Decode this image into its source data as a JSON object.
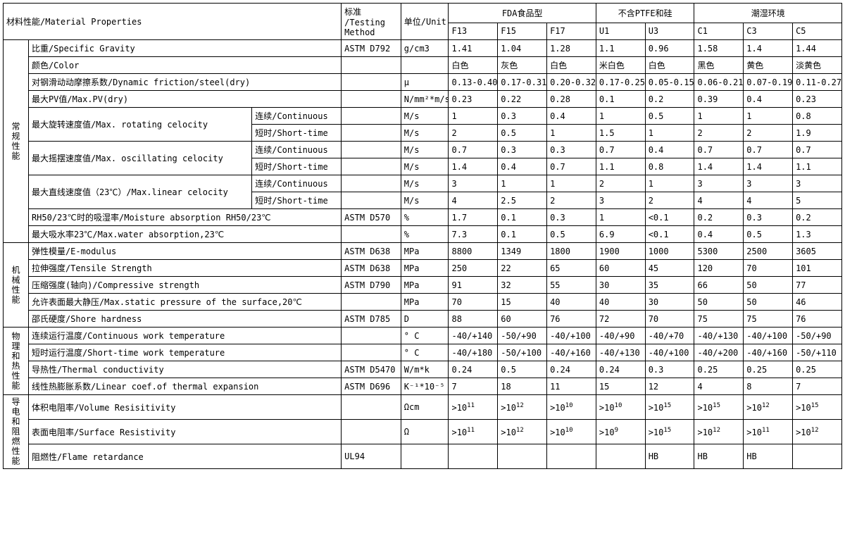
{
  "header": {
    "material_properties": "材料性能/Material Properties",
    "testing_method": "标准\n/Testing\nMethod",
    "unit": "单位/Unit",
    "groups": [
      {
        "label": "FDA食品型",
        "cols": [
          "F13",
          "F15",
          "F17"
        ]
      },
      {
        "label": "不含PTFE和硅",
        "cols": [
          "U1",
          "U3"
        ]
      },
      {
        "label": "潮湿环境",
        "cols": [
          "C1",
          "C3",
          "C5"
        ]
      }
    ]
  },
  "categories": [
    {
      "id": "general",
      "label": "常规性能"
    },
    {
      "id": "mech",
      "label": "机械性能"
    },
    {
      "id": "thermal",
      "label": "物理和热性能"
    },
    {
      "id": "elec",
      "label": "导电和阻燃性能"
    }
  ],
  "row_labels": {
    "continuous": "连续/Continuous",
    "short_time": "短时/Short-time"
  },
  "properties": {
    "spec_gravity": "比重/Specific Gravity",
    "color": "颜色/Color",
    "friction": "对钢滑动动摩擦系数/Dynamic friction/steel(dry)",
    "max_pv": "最大PV值/Max.PV(dry)",
    "rot_vel": "最大旋转速度值/Max. rotating celocity",
    "osc_vel": "最大摇摆速度值/Max. oscillating celocity",
    "lin_vel": "最大直线速度值（23℃）/Max.linear celocity",
    "moist_rh50": "RH50/23℃时的吸湿率/Moisture absorption RH50/23℃",
    "max_water": "最大吸水率23℃/Max.water absorption,23℃",
    "e_modulus": "弹性模量/E-modulus",
    "tensile": "拉伸强度/Tensile Strength",
    "compressive": "压缩强度(轴向)/Compressive strength",
    "static_pressure": "允许表面最大静压/Max.static pressure of the surface,20℃",
    "shore": "邵氏硬度/Shore hardness",
    "cont_work_temp": "连续运行温度/Continuous work temperature",
    "short_work_temp": "短时运行温度/Short-time work temperature",
    "therm_cond": "导热性/Thermal conductivity",
    "lin_coef": "线性热膨胀系数/Linear coef.of thermal expansion",
    "vol_res": "体积电阻率/Volume Resisitivity",
    "surf_res": "表面电阻率/Surface Resistivity",
    "flame": "阻燃性/Flame retardance"
  },
  "rows": [
    {
      "prop": "spec_gravity",
      "std": "ASTM D792",
      "unit": "g/cm3",
      "vals": [
        "1.41",
        "1.04",
        "1.28",
        "1.1",
        "0.96",
        "1.58",
        "1.4",
        "1.44"
      ]
    },
    {
      "prop": "color",
      "std": "",
      "unit": "",
      "vals": [
        "白色",
        "灰色",
        "白色",
        "米白色",
        "白色",
        "黑色",
        "黄色",
        "淡黄色"
      ]
    },
    {
      "prop": "friction",
      "std": "",
      "unit": "μ",
      "vals": [
        "0.13-0.40",
        "0.17-0.31",
        "0.20-0.32",
        "0.17-0.25",
        "0.05-0.15",
        "0.06-0.21",
        "0.07-0.19",
        "0.11-0.27"
      ]
    },
    {
      "prop": "max_pv",
      "std": "",
      "unit": "N/mm²*m/s",
      "vals": [
        "0.23",
        "0.22",
        "0.28",
        "0.1",
        "0.2",
        "0.39",
        "0.4",
        "0.23"
      ]
    },
    {
      "prop": "rot_vel",
      "sub": "continuous",
      "std": "",
      "unit": "M/s",
      "vals": [
        "1",
        "0.3",
        "0.4",
        "1",
        "0.5",
        "1",
        "1",
        "0.8"
      ]
    },
    {
      "prop": "rot_vel",
      "sub": "short_time",
      "std": "",
      "unit": "M/s",
      "vals": [
        "2",
        "0.5",
        "1",
        "1.5",
        "1",
        "2",
        "2",
        "1.9"
      ]
    },
    {
      "prop": "osc_vel",
      "sub": "continuous",
      "std": "",
      "unit": "M/s",
      "vals": [
        "0.7",
        "0.3",
        "0.3",
        "0.7",
        "0.4",
        "0.7",
        "0.7",
        "0.7"
      ]
    },
    {
      "prop": "osc_vel",
      "sub": "short_time",
      "std": "",
      "unit": "M/s",
      "vals": [
        "1.4",
        "0.4",
        "0.7",
        "1.1",
        "0.8",
        "1.4",
        "1.4",
        "1.1"
      ]
    },
    {
      "prop": "lin_vel",
      "sub": "continuous",
      "std": "",
      "unit": "M/s",
      "vals": [
        "3",
        "1",
        "1",
        "2",
        "1",
        "3",
        "3",
        "3"
      ]
    },
    {
      "prop": "lin_vel",
      "sub": "short_time",
      "std": "",
      "unit": "M/s",
      "vals": [
        "4",
        "2.5",
        "2",
        "3",
        "2",
        "4",
        "4",
        "5"
      ]
    },
    {
      "prop": "moist_rh50",
      "std": "ASTM D570",
      "unit": "%",
      "vals": [
        "1.7",
        "0.1",
        "0.3",
        "1",
        "<0.1",
        "0.2",
        "0.3",
        "0.2"
      ]
    },
    {
      "prop": "max_water",
      "std": "",
      "unit": "%",
      "vals": [
        "7.3",
        "0.1",
        "0.5",
        "6.9",
        "<0.1",
        "0.4",
        "0.5",
        "1.3"
      ]
    },
    {
      "prop": "e_modulus",
      "std": "ASTM D638",
      "unit": "MPa",
      "vals": [
        "8800",
        "1349",
        "1800",
        "1900",
        "1000",
        "5300",
        "2500",
        "3605"
      ]
    },
    {
      "prop": "tensile",
      "std": "ASTM D638",
      "unit": "MPa",
      "vals": [
        "250",
        "22",
        "65",
        "60",
        "45",
        "120",
        "70",
        "101"
      ]
    },
    {
      "prop": "compressive",
      "std": "ASTM D790",
      "unit": "MPa",
      "vals": [
        "91",
        "32",
        "55",
        "30",
        "35",
        "66",
        "50",
        "77"
      ]
    },
    {
      "prop": "static_pressure",
      "std": "",
      "unit": "MPa",
      "vals": [
        "70",
        "15",
        "40",
        "40",
        "30",
        "50",
        "50",
        "46"
      ]
    },
    {
      "prop": "shore",
      "std": "ASTM D785",
      "unit": "D",
      "vals": [
        "88",
        "60",
        "76",
        "72",
        "70",
        "75",
        "75",
        "76"
      ]
    },
    {
      "prop": "cont_work_temp",
      "std": "",
      "unit": "° C",
      "vals": [
        "-40/+140",
        "-50/+90",
        "-40/+100",
        "-40/+90",
        "-40/+70",
        "-40/+130",
        "-40/+100",
        "-50/+90"
      ]
    },
    {
      "prop": "short_work_temp",
      "std": "",
      "unit": "° C",
      "vals": [
        "-40/+180",
        "-50/+100",
        "-40/+160",
        "-40/+130",
        "-40/+100",
        "-40/+200",
        "-40/+160",
        "-50/+110"
      ]
    },
    {
      "prop": "therm_cond",
      "std": "ASTM D5470",
      "unit": "W/m*k",
      "vals": [
        "0.24",
        "0.5",
        "0.24",
        "0.24",
        "0.3",
        "0.25",
        "0.25",
        "0.25"
      ]
    },
    {
      "prop": "lin_coef",
      "std": "ASTM D696",
      "unit": "K⁻¹*10⁻⁵",
      "vals": [
        "7",
        "18",
        "11",
        "15",
        "12",
        "4",
        "8",
        "7"
      ]
    },
    {
      "prop": "vol_res",
      "std": "",
      "unit": "Ωcm",
      "exp": true,
      "vals": [
        ">10^11",
        ">10^12",
        ">10^10",
        ">10^10",
        ">10^15",
        ">10^15",
        ">10^12",
        ">10^15"
      ]
    },
    {
      "prop": "surf_res",
      "std": "",
      "unit": "Ω",
      "exp": true,
      "vals": [
        ">10^11",
        ">10^12",
        ">10^10",
        ">10^9",
        ">10^15",
        ">10^12",
        ">10^11",
        ">10^12"
      ]
    },
    {
      "prop": "flame",
      "std": "UL94",
      "unit": "",
      "vals": [
        "",
        "",
        "",
        "",
        "HB",
        "HB",
        "HB",
        ""
      ]
    }
  ],
  "category_map": {
    "general": [
      "spec_gravity",
      "color",
      "friction",
      "max_pv",
      "rot_vel",
      "osc_vel",
      "lin_vel",
      "moist_rh50",
      "max_water"
    ],
    "mech": [
      "e_modulus",
      "tensile",
      "compressive",
      "static_pressure",
      "shore"
    ],
    "thermal": [
      "cont_work_temp",
      "short_work_temp",
      "therm_cond",
      "lin_coef"
    ],
    "elec": [
      "vol_res",
      "surf_res",
      "flame"
    ]
  }
}
